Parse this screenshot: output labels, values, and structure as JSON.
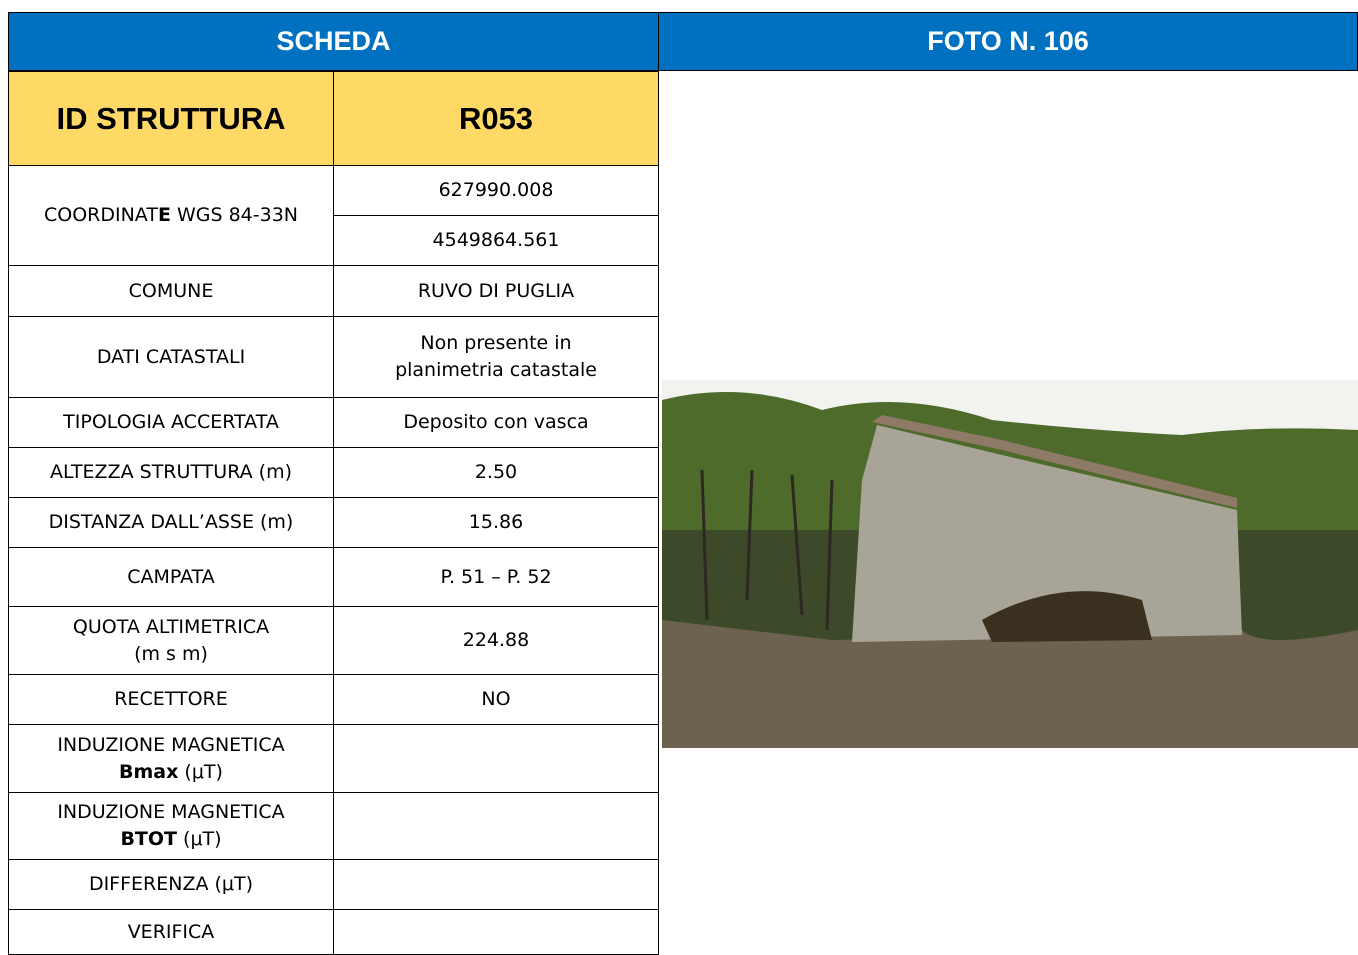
{
  "header": {
    "left": "SCHEDA",
    "right": "FOTO N. 106"
  },
  "id_row": {
    "label": "ID STRUTTURA",
    "value": "R053"
  },
  "coordinates": {
    "label": [
      "COORDINAT",
      "E",
      " WGS 84-33N"
    ],
    "values": [
      "627990.008",
      "4549864.561"
    ]
  },
  "rows": [
    {
      "label": [
        "COMUNE"
      ],
      "value": [
        "RUVO DI PUGLIA"
      ]
    },
    {
      "label": [
        "DATI CATASTALI"
      ],
      "value": [
        "Non presente in",
        "planimetria catastale"
      ]
    },
    {
      "label": [
        "TIPOLOGIA ACCERTATA"
      ],
      "value": [
        "Deposito con vasca"
      ]
    },
    {
      "label": [
        "ALTEZZA STRUTTURA (m)"
      ],
      "value": [
        "2.50"
      ]
    },
    {
      "label": [
        "DISTANZA DALL’ASSE (m)"
      ],
      "value": [
        "15.86"
      ]
    },
    {
      "label": [
        "CAMPATA"
      ],
      "value": [
        "P. 51 – P. 52"
      ]
    },
    {
      "label": [
        "QUOTA ALTIMETRICA",
        "(m s m)"
      ],
      "value": [
        "224.88"
      ]
    },
    {
      "label": [
        "RECETTORE"
      ],
      "value": [
        "NO"
      ]
    },
    {
      "label": [
        "INDUZIONE MAGNETICA",
        "Bmax",
        " (μT)"
      ]
    },
    {
      "label": [
        "INDUZIONE MAGNETICA",
        "BTOT",
        "  (μT)"
      ]
    },
    {
      "label": [
        "DIFFERENZA (μT)"
      ]
    },
    {
      "label": [
        "VERIFICA"
      ]
    }
  ]
}
